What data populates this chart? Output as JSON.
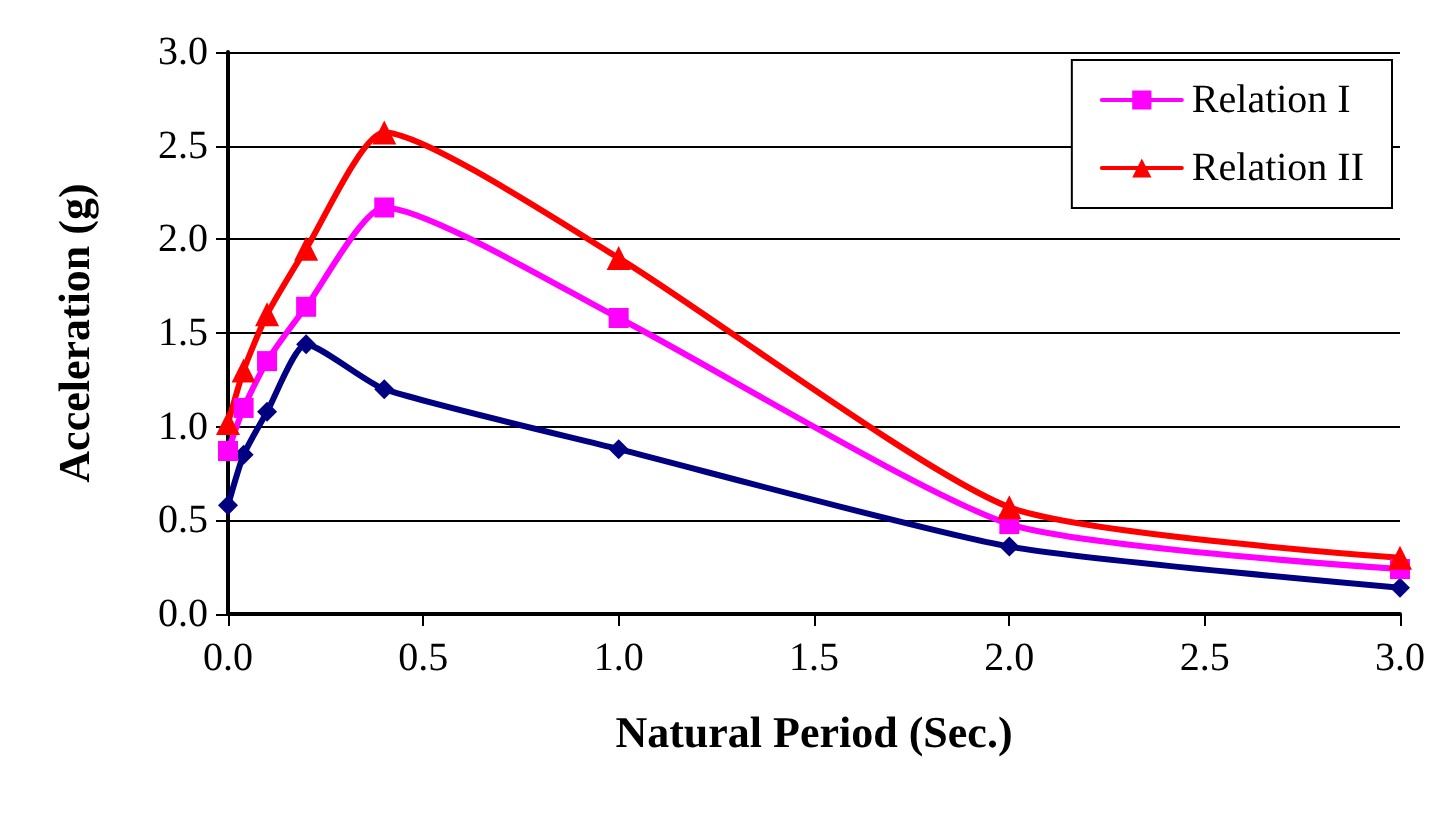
{
  "chart_data": {
    "type": "line",
    "xlabel": "Natural Period (Sec.)",
    "ylabel": "Acceleration (g)",
    "x": [
      0,
      0.04,
      0.1,
      0.2,
      0.4,
      1.0,
      2.0,
      3.0
    ],
    "series": [
      {
        "color": "#000080",
        "marker": "diamond",
        "values": [
          0.58,
          0.85,
          1.08,
          1.44,
          1.2,
          0.88,
          0.36,
          0.14
        ]
      },
      {
        "name": "Relation I",
        "color": "#ff00ff",
        "marker": "square",
        "values": [
          0.87,
          1.1,
          1.35,
          1.64,
          2.17,
          1.58,
          0.48,
          0.24
        ]
      },
      {
        "name": "Relation II",
        "color": "#ff0000",
        "marker": "triangle",
        "values": [
          1.02,
          1.3,
          1.6,
          1.95,
          2.57,
          1.9,
          0.57,
          0.3
        ]
      }
    ],
    "xlim": [
      0,
      3
    ],
    "xticks": [
      {
        "value": 0,
        "label": "0.0"
      },
      0.5,
      {
        "value": 1,
        "label": "1.0"
      },
      1.5,
      {
        "value": 2,
        "label": "2.0"
      },
      2.5,
      {
        "value": 3,
        "label": "3.0"
      }
    ],
    "ylim": [
      0,
      3
    ],
    "yticks": [
      {
        "value": 0,
        "label": "0.0"
      },
      0.5,
      {
        "value": 1,
        "label": "1.0"
      },
      1.5,
      {
        "value": 2,
        "label": "2.0"
      },
      2.5,
      {
        "value": 3,
        "label": "3.0"
      }
    ],
    "grid": "y",
    "legend": "top right",
    "line_style": "solid"
  }
}
